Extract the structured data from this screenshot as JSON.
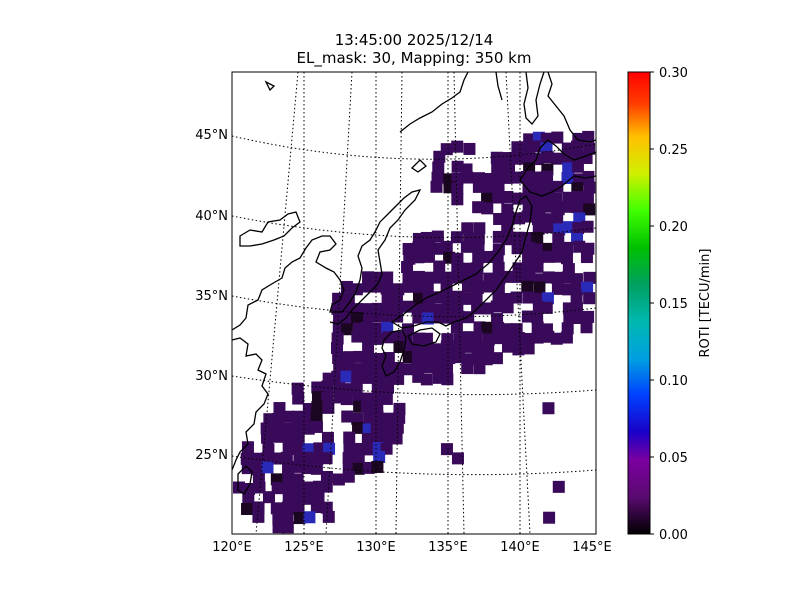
{
  "title": {
    "line1": "13:45:00 2025/12/14",
    "line2": "EL_mask: 30, Mapping: 350 km"
  },
  "map": {
    "projection": "orthographic-like",
    "lon_range": [
      120,
      145
    ],
    "lat_range": [
      20,
      49
    ],
    "lat_labels": [
      "45°N",
      "40°N",
      "35°N",
      "30°N",
      "25°N"
    ],
    "lon_labels": [
      "120°E",
      "125°E",
      "130°E",
      "135°E",
      "140°E",
      "145°E"
    ],
    "grid": "dotted"
  },
  "colorbar": {
    "label": "ROTI [TECU/min]",
    "ticks": [
      "0.00",
      "0.05",
      "0.10",
      "0.15",
      "0.20",
      "0.25",
      "0.30"
    ],
    "min": 0.0,
    "max": 0.3,
    "colormap": "nipy_spectral"
  },
  "colors": {
    "dominant_cell": "#3a0a5a",
    "dark_cell": "#1a0620",
    "blue_cell": "#2a2ab8"
  }
}
